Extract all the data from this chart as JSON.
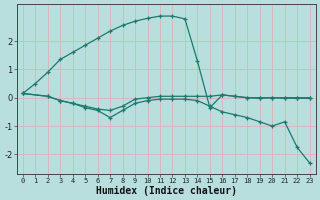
{
  "xlabel": "Humidex (Indice chaleur)",
  "background_color": "#b8dede",
  "grid_color": "#d8b8b8",
  "line_color": "#1a7a6e",
  "xlim": [
    -0.5,
    23.5
  ],
  "ylim": [
    -2.7,
    3.3
  ],
  "xticks": [
    0,
    1,
    2,
    3,
    4,
    5,
    6,
    7,
    8,
    9,
    10,
    11,
    12,
    13,
    14,
    15,
    16,
    17,
    18,
    19,
    20,
    21,
    22,
    23
  ],
  "yticks": [
    -2,
    -1,
    0,
    1,
    2
  ],
  "lines": [
    {
      "x": [
        0,
        1,
        2,
        3,
        4,
        5,
        6,
        7,
        8,
        9,
        10,
        11,
        12,
        13,
        14,
        15,
        16,
        17,
        18,
        19,
        20,
        21,
        22,
        23
      ],
      "y": [
        0.15,
        0.5,
        0.9,
        1.35,
        1.6,
        1.85,
        2.1,
        2.35,
        2.55,
        2.7,
        2.8,
        2.88,
        2.88,
        2.78,
        1.3,
        -0.35,
        0.1,
        0.05,
        0.0,
        -0.02,
        0.0,
        -0.02,
        -0.02,
        -0.02
      ]
    },
    {
      "x": [
        0,
        2,
        3,
        4,
        5,
        6,
        7,
        8,
        9,
        10,
        11,
        12,
        13,
        14,
        15,
        16,
        17,
        18,
        19,
        20,
        21,
        22,
        23
      ],
      "y": [
        0.15,
        0.05,
        -0.1,
        -0.2,
        -0.3,
        -0.4,
        -0.45,
        -0.3,
        -0.05,
        0.0,
        0.05,
        0.05,
        0.05,
        0.05,
        0.05,
        0.1,
        0.05,
        0.0,
        0.0,
        0.0,
        0.0,
        0.0,
        0.0
      ]
    },
    {
      "x": [
        0,
        2,
        3,
        4,
        5,
        6,
        7,
        8,
        9,
        10,
        11,
        12,
        13,
        14,
        15,
        16,
        17,
        18,
        19,
        20,
        21,
        22,
        23
      ],
      "y": [
        0.15,
        0.05,
        -0.1,
        -0.2,
        -0.35,
        -0.45,
        -0.7,
        -0.45,
        -0.2,
        -0.1,
        -0.05,
        -0.05,
        -0.05,
        -0.1,
        -0.3,
        -0.5,
        -0.6,
        -0.7,
        -0.85,
        -1.0,
        -0.85,
        -1.75,
        -2.3
      ]
    }
  ]
}
